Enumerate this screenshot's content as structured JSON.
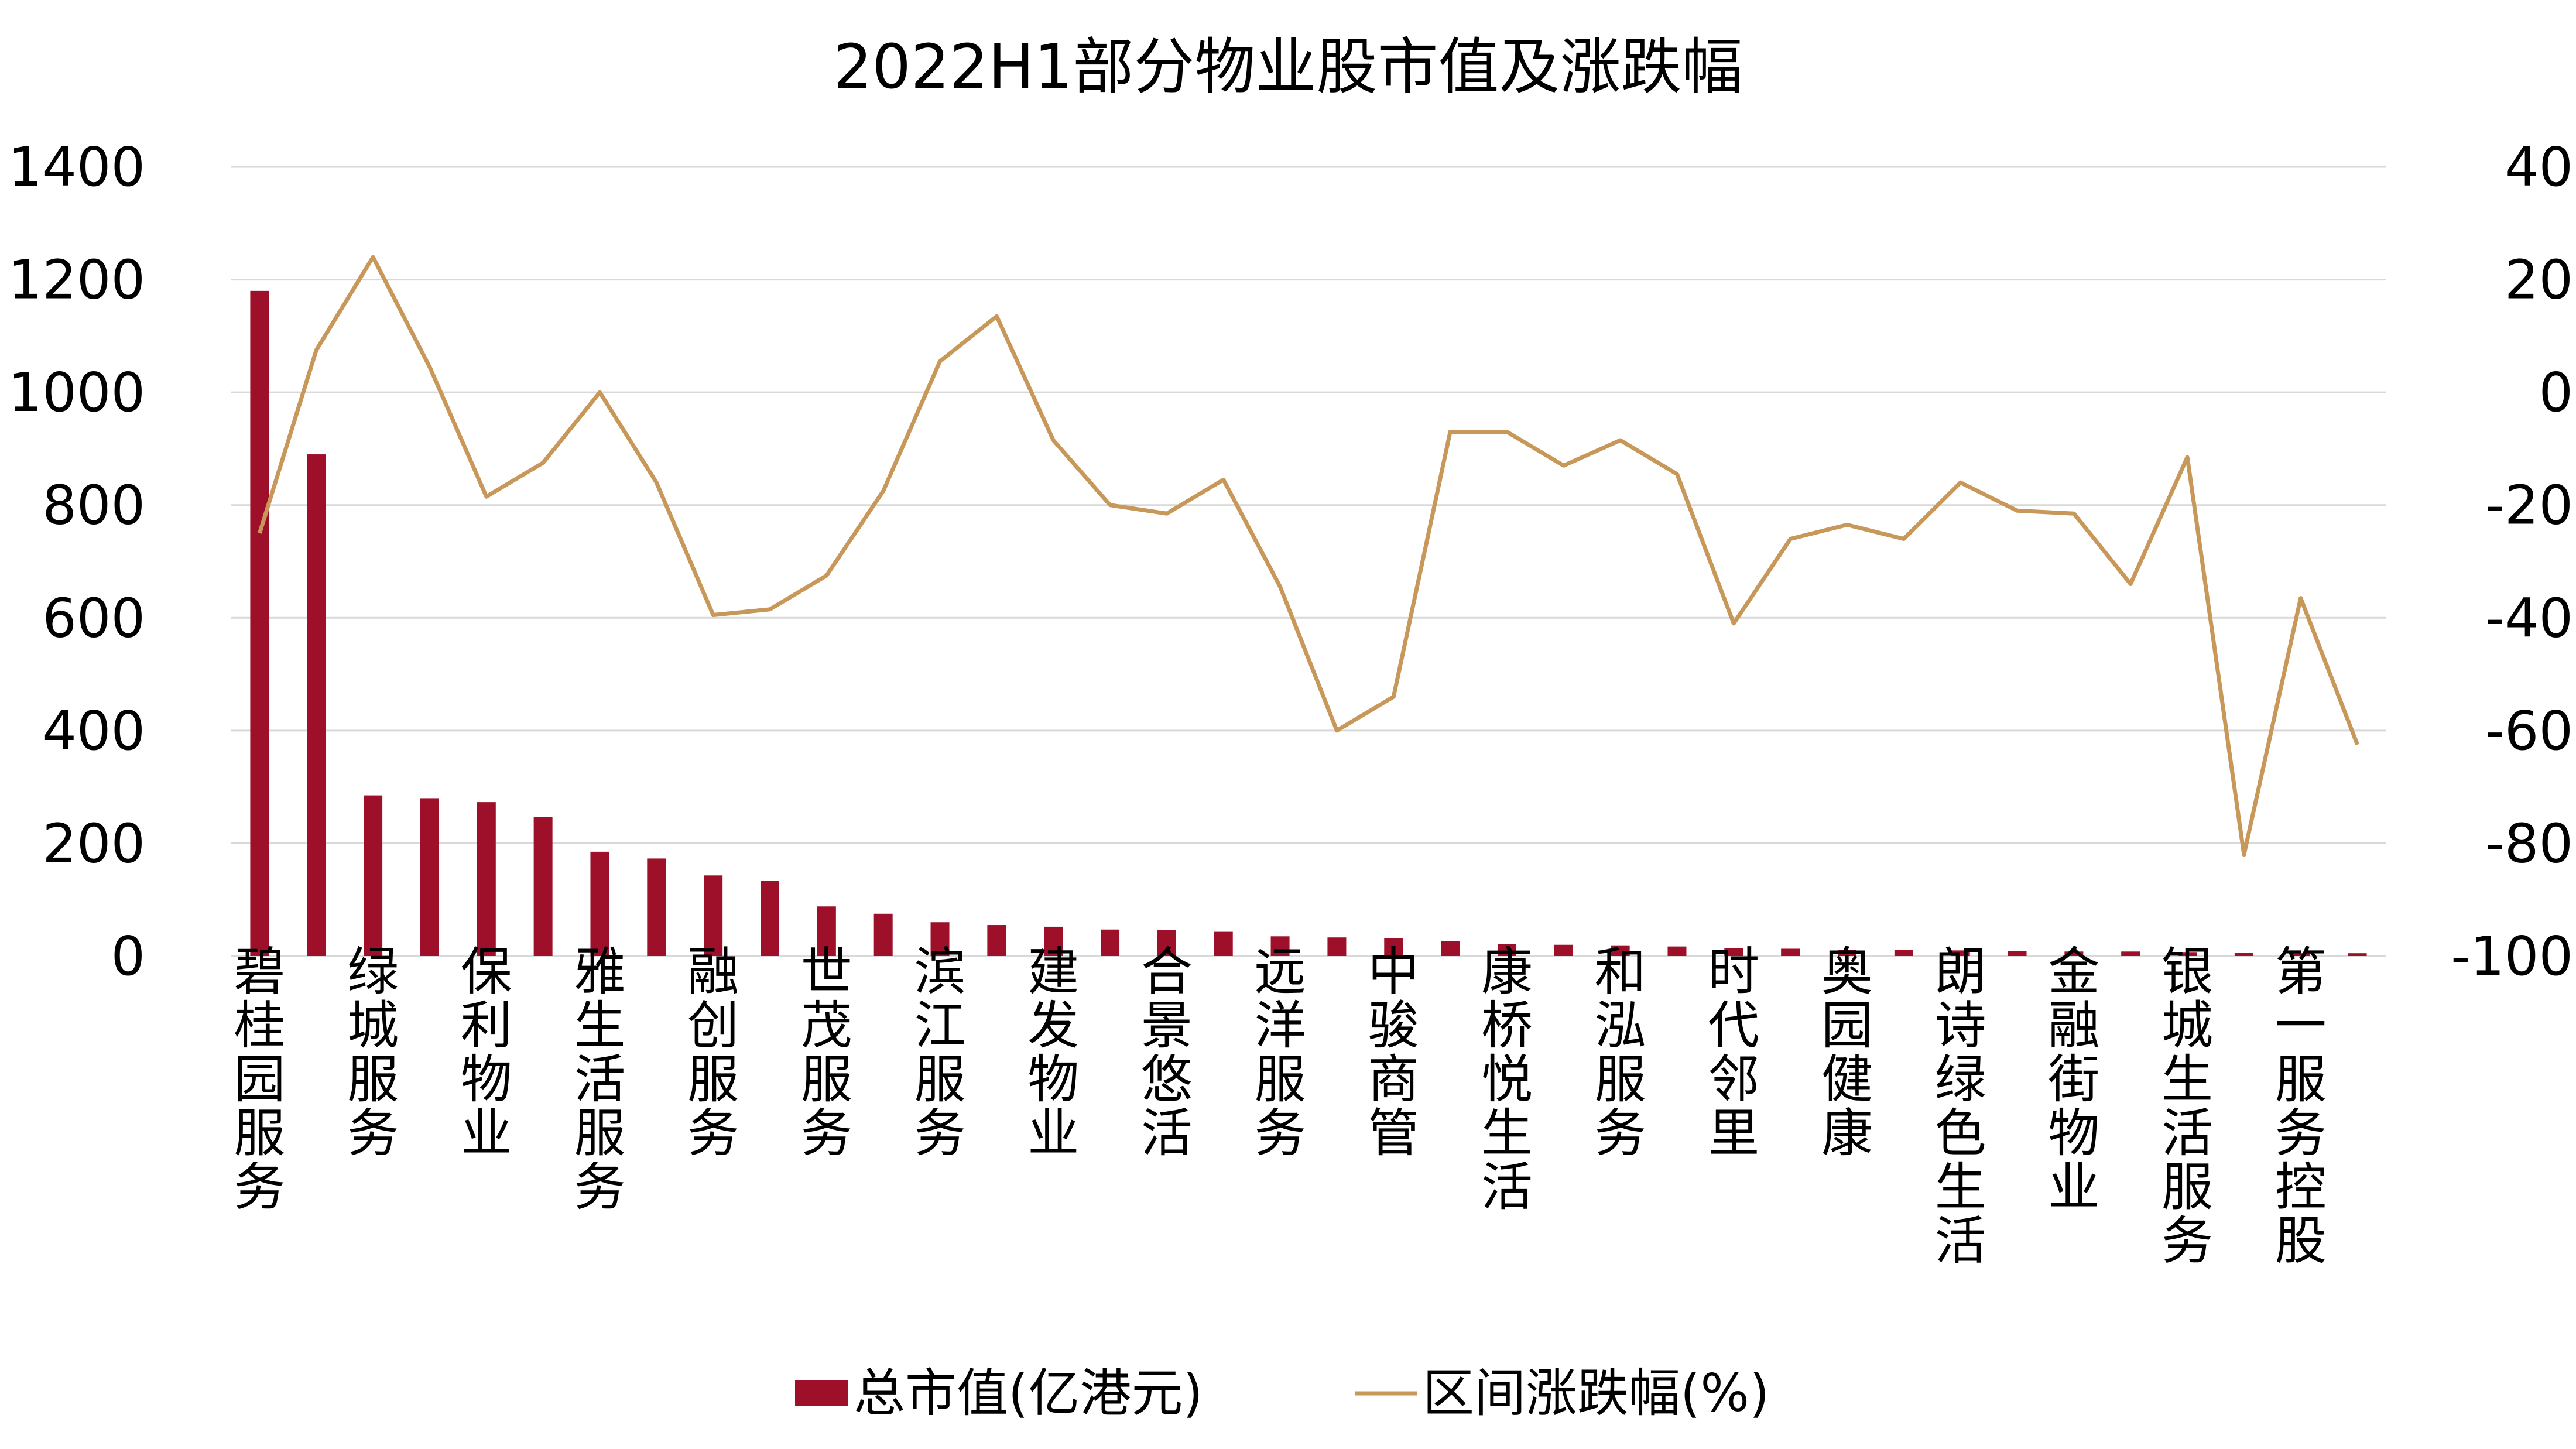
{
  "colors": {
    "bar": "#9e0f2a",
    "line": "#c8975a",
    "grid": "#d9d9d9",
    "text": "#000000"
  },
  "chart_data": {
    "type": "bar+line",
    "title": "2022H1部分物业股市值及涨跌幅",
    "categories": [
      "碧桂园服务",
      "",
      "绿城服务",
      "",
      "保利物业",
      "",
      "雅生活服务",
      "",
      "融创服务",
      "",
      "世茂服务",
      "",
      "滨江服务",
      "",
      "建发物业",
      "",
      "合景悠活",
      "",
      "远洋服务",
      "",
      "中骏商管",
      "",
      "康桥悦生活",
      "",
      "和泓服务",
      "",
      "时代邻里",
      "",
      "奥园健康",
      "",
      "朗诗绿色生活",
      "",
      "金融街物业",
      "",
      "银城生活服务",
      "",
      "第一服务控股",
      ""
    ],
    "series": [
      {
        "name": "总市值(亿港元)",
        "axis": "left",
        "type": "bar",
        "values": [
          1180,
          890,
          285,
          280,
          273,
          247,
          185,
          173,
          143,
          133,
          88,
          75,
          60,
          55,
          52,
          47,
          46,
          43,
          35,
          33,
          32,
          27,
          21,
          20,
          19,
          17,
          14,
          13,
          11,
          11,
          10,
          9,
          8,
          8,
          7,
          6,
          5,
          5
        ]
      },
      {
        "name": "区间涨跌幅(%)",
        "axis": "right",
        "type": "line",
        "values": [
          -25,
          7.5,
          24,
          4.5,
          -18.5,
          -12.5,
          0,
          -16,
          -39.5,
          -38.5,
          -32.5,
          -17.5,
          5.5,
          13.5,
          -8.5,
          -20,
          -21.5,
          -15.5,
          -34.5,
          -60,
          -54,
          -7,
          -7,
          -13,
          -8.5,
          -14.5,
          -41,
          -26,
          -23.5,
          -26,
          -16,
          -21,
          -21.5,
          -34,
          -11.5,
          -82,
          -36.5,
          -62.5
        ]
      }
    ],
    "y_left": {
      "lim": [
        0,
        1400
      ],
      "ticks": [
        "0",
        "200",
        "400",
        "600",
        "800",
        "1000",
        "1200",
        "1400"
      ]
    },
    "y_right": {
      "lim": [
        -100,
        40
      ],
      "ticks": [
        "-100",
        "-80",
        "-60",
        "-40",
        "-20",
        "0",
        "20",
        "40"
      ]
    },
    "grid": true,
    "legend": "bottom-center"
  }
}
